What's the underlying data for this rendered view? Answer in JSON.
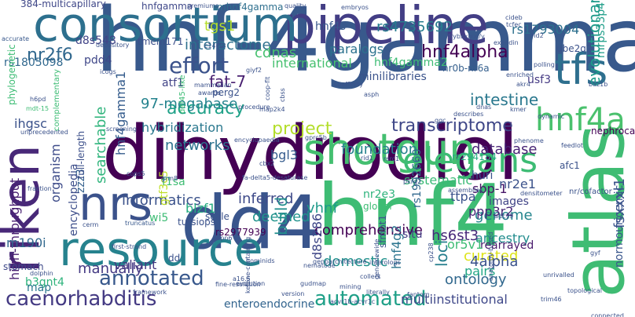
{
  "words": [
    {
      "text": "hnf-4gamma",
      "color": "#38598c",
      "vertical": false
    },
    {
      "text": "dihydrodiol",
      "color": "#440154",
      "vertical": false
    },
    {
      "text": "hnf4",
      "color": "#3ebc74",
      "vertical": false
    },
    {
      "text": "dd4",
      "color": "#39558c",
      "vertical": false
    },
    {
      "text": "pipeline",
      "color": "#433e85",
      "vertical": false
    },
    {
      "text": "consortium",
      "color": "#2d708e",
      "vertical": false
    },
    {
      "text": "resource",
      "color": "#26828e",
      "vertical": false
    },
    {
      "text": "riken",
      "color": "#482878",
      "vertical": true
    },
    {
      "text": "nrs",
      "color": "#3b528b",
      "vertical": false
    },
    {
      "text": "atlas",
      "color": "#3fbc73",
      "vertical": true
    },
    {
      "text": "shotgun",
      "color": "#44bf70",
      "vertical": false
    },
    {
      "text": "elegans",
      "color": "#3dbc74",
      "vertical": false
    },
    {
      "text": "tfs",
      "color": "#2e6f8e",
      "vertical": false
    },
    {
      "text": "hnf4a",
      "color": "#4ac16d",
      "vertical": false
    },
    {
      "text": "annotated",
      "color": "#38588c",
      "vertical": false
    },
    {
      "text": "caenorhabditis",
      "color": "#443a83",
      "vertical": false
    },
    {
      "text": "automated",
      "color": "#1fa088",
      "vertical": false
    },
    {
      "text": "ontology",
      "color": "#31688e",
      "vertical": false
    },
    {
      "text": "effort",
      "color": "#3b528b",
      "vertical": false
    },
    {
      "text": "project",
      "color": "#b4de2c",
      "vertical": false
    },
    {
      "text": "accuracy",
      "color": "#1fa188",
      "vertical": false
    },
    {
      "text": "transcriptome",
      "color": "#3f4788",
      "vertical": false
    },
    {
      "text": "hnf4alpha",
      "color": "#440154",
      "vertical": false
    },
    {
      "text": "nr2f6",
      "color": "#31688e",
      "vertical": false
    },
    {
      "text": "fat-7",
      "color": "#481f70",
      "vertical": false
    },
    {
      "text": "intestine",
      "color": "#2a788e",
      "vertical": false
    },
    {
      "text": "evolutionary",
      "color": "#1f9a8a",
      "vertical": true
    },
    {
      "text": "interactome",
      "color": "#2d708e",
      "vertical": false
    },
    {
      "text": "manually",
      "color": "#443983",
      "vertical": false
    },
    {
      "text": "informatics",
      "color": "#3b528b",
      "vertical": false
    },
    {
      "text": "networks",
      "color": "#2c728e",
      "vertical": false
    },
    {
      "text": "foundation",
      "color": "#26828e",
      "vertical": false
    },
    {
      "text": "database",
      "color": "#482475",
      "vertical": false
    },
    {
      "text": "curated",
      "color": "#dde318",
      "vertical": false
    },
    {
      "text": "genome",
      "color": "#25858e",
      "vertical": false
    },
    {
      "text": "comprehensive",
      "color": "#440154",
      "vertical": false
    },
    {
      "text": "inferred",
      "color": "#3e4a89",
      "vertical": false
    },
    {
      "text": "deemed",
      "color": "#20938c",
      "vertical": false
    },
    {
      "text": "build",
      "color": "#228d8d",
      "vertical": true
    },
    {
      "text": "loci",
      "color": "#277f8e",
      "vertical": true
    },
    {
      "text": "hs6st3",
      "color": "#472a7a",
      "vertical": false
    },
    {
      "text": "ancestry",
      "color": "#228c8d",
      "vertical": false
    },
    {
      "text": "rearrayed",
      "color": "#481a6c",
      "vertical": false
    },
    {
      "text": "4alpha",
      "color": "#3b528b",
      "vertical": false
    },
    {
      "text": "ppp3r2",
      "color": "#482576",
      "vertical": false
    },
    {
      "text": "domestic",
      "color": "#21918c",
      "vertical": false
    },
    {
      "text": "pairs",
      "color": "#22a785",
      "vertical": false
    },
    {
      "text": "multiinstitutional",
      "color": "#3f4889",
      "vertical": false
    },
    {
      "text": "enteroendocrine",
      "color": "#32648e",
      "vertical": false
    },
    {
      "text": "valiant",
      "color": "#453781",
      "vertical": false
    },
    {
      "text": "encyclopedia",
      "color": "#3d4e8a",
      "vertical": true
    },
    {
      "text": "organism",
      "color": "#3e4c8a",
      "vertical": true
    },
    {
      "text": "searchable",
      "color": "#2fb47c",
      "vertical": true
    },
    {
      "text": "hnf4gamma1",
      "color": "#365d8d",
      "vertical": true
    },
    {
      "text": "high-throughput",
      "color": "#481f70",
      "vertical": true
    },
    {
      "text": "ihgsc",
      "color": "#3b528b",
      "vertical": false
    },
    {
      "text": "m190i",
      "color": "#31688e",
      "vertical": false
    },
    {
      "text": "b3gnt4",
      "color": "#2eb37c",
      "vertical": false
    },
    {
      "text": "stomach",
      "color": "#3e4989",
      "vertical": false
    },
    {
      "text": "map",
      "color": "#2a778e",
      "vertical": false
    },
    {
      "text": "rs1805098",
      "color": "#31688e",
      "vertical": false
    },
    {
      "text": "pdd4",
      "color": "#3f4788",
      "vertical": false
    },
    {
      "text": "d8s548",
      "color": "#414487",
      "vertical": false
    },
    {
      "text": "tmem171",
      "color": "#3c4f8a",
      "vertical": false
    },
    {
      "text": "tgs1",
      "color": "#b5de2b",
      "vertical": false
    },
    {
      "text": "cdnas",
      "color": "#46c06f",
      "vertical": false
    },
    {
      "text": "paralogs",
      "color": "#2c728e",
      "vertical": false
    },
    {
      "text": "international",
      "color": "#46c06f",
      "vertical": false
    },
    {
      "text": "minilibraries",
      "color": "#3a538b",
      "vertical": false
    },
    {
      "text": "hnf4gamma2",
      "color": "#3dbc74",
      "vertical": false
    },
    {
      "text": "nr0b-nr6a",
      "color": "#355f8d",
      "vertical": false
    },
    {
      "text": "usf3",
      "color": "#443983",
      "vertical": false
    },
    {
      "text": "atf1",
      "color": "#414487",
      "vertical": false
    },
    {
      "text": "perg2",
      "color": "#3b528b",
      "vertical": false
    },
    {
      "text": "97-megabase",
      "color": "#25838e",
      "vertical": false
    },
    {
      "text": "hybridization",
      "color": "#2a788e",
      "vertical": false
    },
    {
      "text": "bgl3",
      "color": "#365c8d",
      "vertical": false
    },
    {
      "text": "systematic",
      "color": "#3aba76",
      "vertical": false
    },
    {
      "text": "huri",
      "color": "#3b528b",
      "vertical": false
    },
    {
      "text": "sbp-1",
      "color": "#481668",
      "vertical": false
    },
    {
      "text": "nr2e1",
      "color": "#3b528b",
      "vertical": false
    },
    {
      "text": "images",
      "color": "#414487",
      "vertical": false
    },
    {
      "text": "nephrocan",
      "color": "#440154",
      "vertical": false
    },
    {
      "text": "rs4735692",
      "color": "#287c8e",
      "vertical": false
    },
    {
      "text": "rs1793004",
      "color": "#2d708e",
      "vertical": false
    },
    {
      "text": "hnf4s",
      "color": "#38588c",
      "vertical": false
    },
    {
      "text": "mrps33p4",
      "color": "#1f9e89",
      "vertical": true
    },
    {
      "text": "gtf3c5",
      "color": "#bddf26",
      "vertical": true
    },
    {
      "text": "zzz3",
      "color": "#34608d",
      "vertical": true
    },
    {
      "text": "full-length",
      "color": "#3c4f8a",
      "vertical": true
    },
    {
      "text": "rs1992660",
      "color": "#31688e",
      "vertical": true
    },
    {
      "text": "rs294184",
      "color": "#26ad81",
      "vertical": false
    },
    {
      "text": "nr2e3",
      "color": "#2eb37c",
      "vertical": false
    },
    {
      "text": "f1sa",
      "color": "#3fbc73",
      "vertical": false
    },
    {
      "text": "wi5",
      "color": "#3dbc74",
      "vertical": false
    },
    {
      "text": "blzf1",
      "color": "#26ad81",
      "vertical": false
    },
    {
      "text": "rs2977939",
      "color": "#440154",
      "vertical": false
    },
    {
      "text": "vhnf",
      "color": "#1f9a8a",
      "vertical": false
    },
    {
      "text": "situ",
      "color": "#433e85",
      "vertical": false
    },
    {
      "text": "ttpa",
      "color": "#3b528b",
      "vertical": false
    },
    {
      "text": "hnf4g2",
      "color": "#2b748e",
      "vertical": true
    },
    {
      "text": "d8s286",
      "color": "#3f4788",
      "vertical": true
    },
    {
      "text": "or5v1",
      "color": "#3dbc74",
      "vertical": false
    },
    {
      "text": "sfmbt1",
      "color": "#3b528b",
      "vertical": true
    },
    {
      "text": "fsxxxl1",
      "color": "#3b528b",
      "vertical": true
    },
    {
      "text": "normouricemic",
      "color": "#39568c",
      "vertical": true
    },
    {
      "text": "384-multicapillary",
      "color": "#3f4788",
      "vertical": false
    },
    {
      "text": "hnfgamma",
      "color": "#3f4889",
      "vertical": false
    },
    {
      "text": "mhnf4gamma",
      "color": "#2e6f8e",
      "vertical": false
    },
    {
      "text": "phylogenetic",
      "color": "#3dbc74",
      "vertical": true
    },
    {
      "text": "accurate",
      "color": "#38588c",
      "vertical": false
    },
    {
      "text": "ube2q2",
      "color": "#3b528b",
      "vertical": false
    },
    {
      "text": "unprecedented",
      "color": "#3b528b",
      "vertical": false
    },
    {
      "text": "complementary",
      "color": "#3dbc74",
      "vertical": true
    },
    {
      "text": "def45-like",
      "color": "#3dbc74",
      "vertical": true
    },
    {
      "text": "mdt-15",
      "color": "#3dbc74",
      "vertical": false
    },
    {
      "text": "fa-delta5-desaturase",
      "color": "#3b528b",
      "vertical": false
    },
    {
      "text": "truncatus",
      "color": "#38588c",
      "vertical": false
    },
    {
      "text": "first-strand",
      "color": "#3b528b",
      "vertical": false
    },
    {
      "text": "scale",
      "color": "#3b528b",
      "vertical": false
    },
    {
      "text": "global",
      "color": "#3dbc74",
      "vertical": false
    },
    {
      "text": "nr/cofactor",
      "color": "#3b528b",
      "vertical": false
    },
    {
      "text": "fraction",
      "color": "#3b528b",
      "vertical": false
    },
    {
      "text": "evolution",
      "color": "#3b528b",
      "vertical": false
    },
    {
      "text": "gudmap",
      "color": "#3b528b",
      "vertical": false
    },
    {
      "text": "mining",
      "color": "#3b528b",
      "vertical": false
    },
    {
      "text": "fantom",
      "color": "#3b528b",
      "vertical": false
    },
    {
      "text": "literally",
      "color": "#3b528b",
      "vertical": false
    },
    {
      "text": "connected",
      "color": "#3b528b",
      "vertical": false
    },
    {
      "text": "version",
      "color": "#3b528b",
      "vertical": false
    },
    {
      "text": "topological",
      "color": "#3b528b",
      "vertical": false
    },
    {
      "text": "unrivalled",
      "color": "#3b528b",
      "vertical": false
    },
    {
      "text": "trim46",
      "color": "#3b528b",
      "vertical": false
    },
    {
      "text": "cerm",
      "color": "#3b528b",
      "vertical": false
    },
    {
      "text": "hominids",
      "color": "#3b528b",
      "vertical": false
    },
    {
      "text": "interologs",
      "color": "#3b528b",
      "vertical": false
    },
    {
      "text": "assemblies",
      "color": "#3b528b",
      "vertical": false
    },
    {
      "text": "densitometer",
      "color": "#3b528b",
      "vertical": false
    },
    {
      "text": "phenome",
      "color": "#3b528b",
      "vertical": false
    },
    {
      "text": "kmer",
      "color": "#3b528b",
      "vertical": false
    },
    {
      "text": "afc1",
      "color": "#3b528b",
      "vertical": false
    },
    {
      "text": "feedlot",
      "color": "#3b528b",
      "vertical": false
    },
    {
      "text": "dnas",
      "color": "#3b528b",
      "vertical": false
    },
    {
      "text": "polling",
      "color": "#3b528b",
      "vertical": false
    },
    {
      "text": "exendin",
      "color": "#3b528b",
      "vertical": false
    },
    {
      "text": "cideb",
      "color": "#3b528b",
      "vertical": false
    },
    {
      "text": "tcfec",
      "color": "#3b528b",
      "vertical": false
    },
    {
      "text": "rid2",
      "color": "#3b528b",
      "vertical": false
    },
    {
      "text": "enriched",
      "color": "#3b528b",
      "vertical": false
    },
    {
      "text": "coaffinity",
      "color": "#3b528b",
      "vertical": false
    },
    {
      "text": "awards",
      "color": "#3b528b",
      "vertical": false
    },
    {
      "text": "encyclopaedia",
      "color": "#3b528b",
      "vertical": false
    },
    {
      "text": "map2k4",
      "color": "#3b528b",
      "vertical": false
    },
    {
      "text": "gprc5b",
      "color": "#3b528b",
      "vertical": false
    },
    {
      "text": "icogs",
      "color": "#3b528b",
      "vertical": false
    },
    {
      "text": "depository",
      "color": "#3b528b",
      "vertical": false
    },
    {
      "text": "premiums",
      "color": "#3b528b",
      "vertical": false
    },
    {
      "text": "quality",
      "color": "#3b528b",
      "vertical": false
    },
    {
      "text": "embryos",
      "color": "#3b528b",
      "vertical": false
    },
    {
      "text": "mammalian",
      "color": "#3b528b",
      "vertical": false
    },
    {
      "text": "c14-18",
      "color": "#3b528b",
      "vertical": false
    },
    {
      "text": "giyf2",
      "color": "#3b528b",
      "vertical": false
    },
    {
      "text": "framework",
      "color": "#3b528b",
      "vertical": false
    },
    {
      "text": "nematode",
      "color": "#3b528b",
      "vertical": false
    },
    {
      "text": "capn6",
      "color": "#3b528b",
      "vertical": false
    },
    {
      "text": "grm8",
      "color": "#3b528b",
      "vertical": false
    },
    {
      "text": "cops5",
      "color": "#3b528b",
      "vertical": false
    },
    {
      "text": "pkrg2",
      "color": "#3b528b",
      "vertical": false
    },
    {
      "text": "adcy9",
      "color": "#3b528b",
      "vertical": false
    },
    {
      "text": "gyf",
      "color": "#3b528b",
      "vertical": false
    },
    {
      "text": "dd",
      "color": "#3b528b",
      "vertical": false
    },
    {
      "text": "tursiops",
      "color": "#3b528b",
      "vertical": false
    },
    {
      "text": "h6pd",
      "color": "#3b528b",
      "vertical": false
    },
    {
      "text": "baz1b",
      "color": "#3b528b",
      "vertical": false
    },
    {
      "text": "ggc",
      "color": "#3b528b",
      "vertical": false
    },
    {
      "text": "ketone-containing",
      "color": "#3b528b",
      "vertical": true
    },
    {
      "text": "genomewide",
      "color": "#3b528b",
      "vertical": true
    },
    {
      "text": "genoarchitecture",
      "color": "#3b528b",
      "vertical": false
    },
    {
      "text": "acvr1b-acvr1c",
      "color": "#3b528b",
      "vertical": false
    },
    {
      "text": "anatomy-based",
      "color": "#3b528b",
      "vertical": true
    },
    {
      "text": "fine-resolution",
      "color": "#3b528b",
      "vertical": false
    },
    {
      "text": "screening",
      "color": "#3b528b",
      "vertical": false
    },
    {
      "text": "frybxxlxxl/y",
      "color": "#3b528b",
      "vertical": false
    },
    {
      "text": "rsrc1",
      "color": "#3b528b",
      "vertical": false
    },
    {
      "text": "cbx2",
      "color": "#3b528b",
      "vertical": false
    },
    {
      "text": "asph",
      "color": "#3b528b",
      "vertical": false
    },
    {
      "text": "describes",
      "color": "#3b528b",
      "vertical": false
    },
    {
      "text": "dynamic",
      "color": "#3b528b",
      "vertical": false
    },
    {
      "text": "akr4",
      "color": "#3b528b",
      "vertical": false
    },
    {
      "text": "dolphin",
      "color": "#3b528b",
      "vertical": false
    },
    {
      "text": "a16.5",
      "color": "#3b528b",
      "vertical": false
    },
    {
      "text": "coop-flt",
      "color": "#3b528b",
      "vertical": true
    },
    {
      "text": "cbss",
      "color": "#3b528b",
      "vertical": true
    },
    {
      "text": "cp238",
      "color": "#3b528b",
      "vertical": true
    },
    {
      "text": "rid1",
      "color": "#3b528b",
      "vertical": false
    },
    {
      "text": "collect",
      "color": "#3b528b",
      "vertical": false
    },
    {
      "text": "procedure",
      "color": "#3b528b",
      "vertical": false
    }
  ]
}
